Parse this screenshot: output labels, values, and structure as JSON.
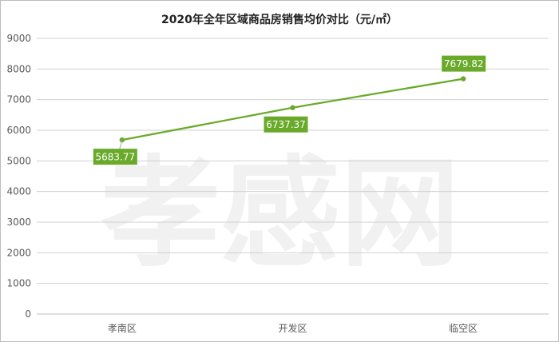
{
  "chart_data": {
    "type": "line",
    "title": "2020年全年区域商品房销售均价对比（元/㎡）",
    "categories": [
      "孝南区",
      "开发区",
      "临空区"
    ],
    "series": [
      {
        "values": [
          5683.77,
          6737.37,
          7679.82
        ]
      }
    ],
    "data_labels": [
      "5683.77",
      "6737.37",
      "7679.82"
    ],
    "y_ticks": [
      "0",
      "1000",
      "2000",
      "3000",
      "4000",
      "5000",
      "6000",
      "7000",
      "8000",
      "9000"
    ],
    "ylim": [
      0,
      9000
    ],
    "grid": true,
    "legend": "none",
    "line_color": "#6aaa2a",
    "label_bg_color": "#6aaa2a",
    "watermark": "孝感网"
  }
}
